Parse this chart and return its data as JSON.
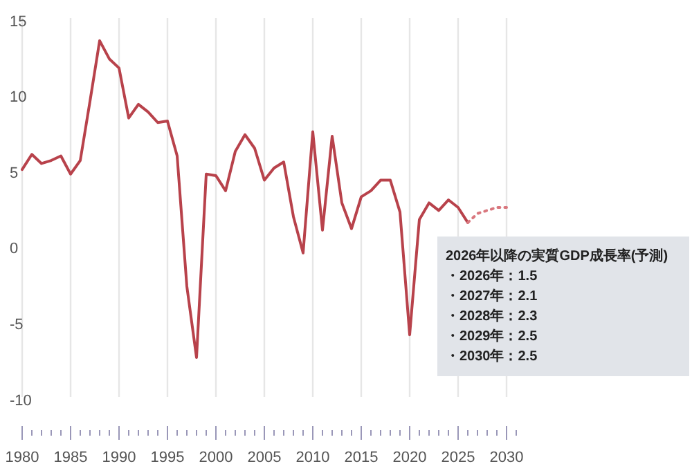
{
  "chart_data": {
    "type": "line",
    "xlim": [
      1980,
      2030
    ],
    "xticks": [
      1980,
      1985,
      1990,
      1995,
      2000,
      2005,
      2010,
      2015,
      2020,
      2025,
      2030
    ],
    "ylim": [
      -10,
      15
    ],
    "yticks": [
      15,
      10,
      5,
      0,
      -5,
      -10
    ],
    "grid": "x",
    "marker": "none",
    "series": [
      {
        "x": [
          1980,
          1981,
          1982,
          1983,
          1984,
          1985,
          1986,
          1987,
          1988,
          1989,
          1990,
          1991,
          1992,
          1993,
          1994,
          1995,
          1996,
          1997,
          1998,
          1999,
          2000,
          2001,
          2002,
          2003,
          2004,
          2005,
          2006,
          2007,
          2008,
          2009,
          2010,
          2011,
          2012,
          2013,
          2014,
          2015,
          2016,
          2017,
          2018,
          2019,
          2020,
          2021,
          2022,
          2023,
          2024,
          2025,
          2026
        ],
        "values": [
          5.0,
          6.0,
          5.4,
          5.6,
          5.9,
          4.7,
          5.6,
          9.5,
          13.5,
          12.3,
          11.7,
          8.4,
          9.3,
          8.8,
          8.1,
          8.2,
          5.9,
          -2.7,
          -7.4,
          4.7,
          4.6,
          3.6,
          6.2,
          7.3,
          6.4,
          4.3,
          5.1,
          5.5,
          1.9,
          -0.5,
          7.5,
          1.0,
          7.2,
          2.8,
          1.1,
          3.2,
          3.6,
          4.3,
          4.3,
          2.2,
          -5.9,
          1.7,
          2.8,
          2.3,
          3.0,
          2.5,
          1.5
        ],
        "color": "#b8424b",
        "line_style": "solid"
      },
      {
        "x": [
          2026,
          2027,
          2028,
          2029,
          2030
        ],
        "values": [
          1.5,
          2.1,
          2.3,
          2.5,
          2.5
        ],
        "color": "#d9777e",
        "line_style": "dotted"
      }
    ],
    "annotations": [
      "2026年以降の実質GDP成長率(予測)\n・2026年：1.5\n・2027年：2.1\n・2028年：2.3\n・2029年：2.5\n・2030年：2.5"
    ]
  }
}
